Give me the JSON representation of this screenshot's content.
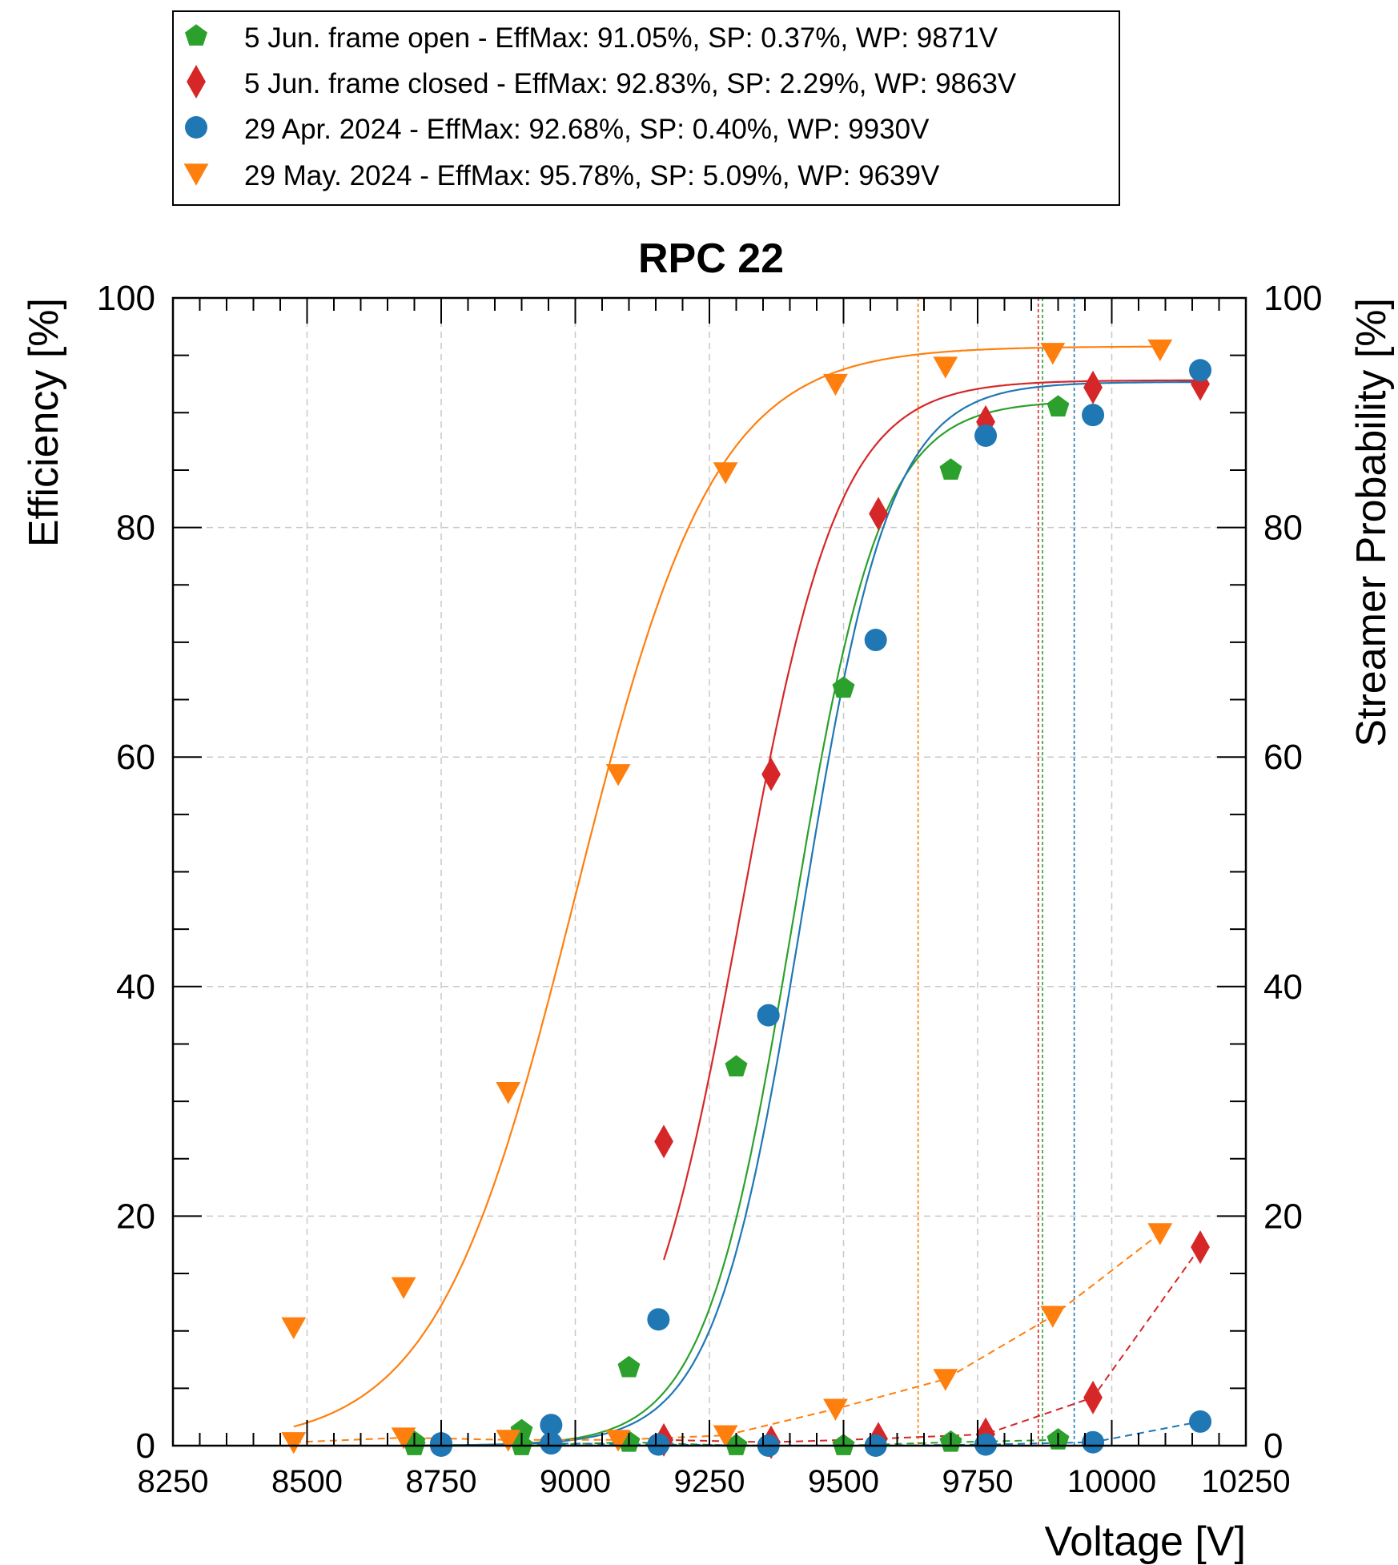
{
  "chart_data": {
    "type": "scatter",
    "title": "RPC 22",
    "xlabel": "Voltage [V]",
    "ylabel": "Efficiency [%]",
    "y2label": "Streamer Probability [%]",
    "xlim": [
      8250,
      10250
    ],
    "ylim": [
      0,
      100
    ],
    "y2lim": [
      0,
      100
    ],
    "xticks": [
      "8250",
      "8500",
      "8750",
      "9000",
      "9250",
      "9500",
      "9750",
      "10000",
      "10250"
    ],
    "yticks": [
      "0",
      "20",
      "40",
      "60",
      "80",
      "100"
    ],
    "grid": true,
    "legend_position": "top, above plot",
    "series": [
      {
        "name": "5 Jun. frame open - EffMax:  91.05%, SP:  0.37%, WP: 9871V",
        "color": "#2ca02c",
        "marker": "pentagon",
        "eff_x": [
          8700,
          8900,
          9100,
          9300,
          9500,
          9700,
          9900
        ],
        "eff_y": [
          0.3,
          1.3,
          6.8,
          33.0,
          66.0,
          85.0,
          90.5
        ],
        "sp_x": [
          8700,
          8900,
          9100,
          9300,
          9500,
          9700,
          9900
        ],
        "sp_y": [
          0.0,
          0.0,
          0.3,
          0.0,
          0.0,
          0.3,
          0.5
        ],
        "fit": {
          "emax": 91.05,
          "mid": 9405,
          "slope": 82
        },
        "wp": 9871
      },
      {
        "name": "5 Jun. frame closed - EffMax:  92.83%, SP:  2.29%, WP: 9863V",
        "color": "#d62728",
        "marker": "diamond",
        "eff_x": [
          9165,
          9365,
          9565,
          9765,
          9965,
          10165
        ],
        "eff_y": [
          26.5,
          58.5,
          81.2,
          89.2,
          92.2,
          92.5
        ],
        "sp_x": [
          9165,
          9365,
          9565,
          9765,
          9965,
          10165
        ],
        "sp_y": [
          0.5,
          0.3,
          0.6,
          1.0,
          4.2,
          17.3
        ],
        "fit": {
          "emax": 92.83,
          "mid": 9308,
          "slope": 92
        },
        "wp": 9863
      },
      {
        "name": "29 Apr. 2024 - EffMax:  92.68%, SP:  0.40%, WP: 9930V",
        "color": "#1f77b4",
        "marker": "circle",
        "eff_x": [
          8750,
          8955,
          9155,
          9360,
          9560,
          9765,
          9965,
          10165
        ],
        "eff_y": [
          0.2,
          1.8,
          11.0,
          37.5,
          70.2,
          88.0,
          89.8,
          93.7
        ],
        "sp_x": [
          8750,
          8955,
          9155,
          9360,
          9560,
          9765,
          9965,
          10165
        ],
        "sp_y": [
          0.0,
          0.2,
          0.1,
          0.0,
          0.0,
          0.1,
          0.3,
          2.1
        ],
        "fit": {
          "emax": 92.68,
          "mid": 9423,
          "slope": 82
        },
        "wp": 9930
      },
      {
        "name": "29 May. 2024 - EffMax:  95.78%, SP:  5.09%, WP: 9639V",
        "color": "#ff7f0e",
        "marker": "triangle-down",
        "eff_x": [
          8475,
          8680,
          8875,
          9080,
          9280,
          9485,
          9690,
          9890,
          10090
        ],
        "eff_y": [
          10.3,
          13.8,
          30.8,
          58.5,
          84.8,
          92.5,
          94.0,
          95.2,
          95.5
        ],
        "sp_x": [
          8475,
          8680,
          8875,
          9080,
          9280,
          9485,
          9690,
          9890,
          10090
        ],
        "sp_y": [
          0.3,
          0.7,
          0.5,
          0.5,
          0.9,
          3.2,
          5.8,
          11.3,
          18.5
        ],
        "fit": {
          "emax": 95.78,
          "mid": 9000,
          "slope": 130
        },
        "wp": 9639
      }
    ]
  }
}
